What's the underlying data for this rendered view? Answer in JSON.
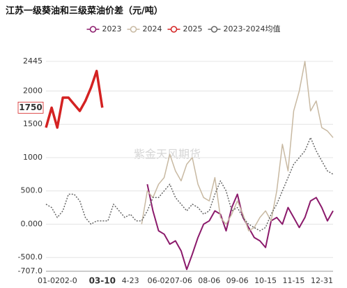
{
  "chart_data": {
    "type": "line",
    "title": "江苏一级葵油和三级菜油价差（元/吨）",
    "watermark": "紫金天风期货",
    "categories": [
      "01-02",
      null,
      null,
      null,
      "02-0",
      null,
      null,
      null,
      null,
      null,
      "03-10",
      null,
      null,
      null,
      null,
      "4-23",
      null,
      null,
      null,
      null,
      "06-02",
      null,
      null,
      null,
      "07-06",
      null,
      null,
      null,
      null,
      "08-06",
      null,
      null,
      null,
      null,
      "09-06",
      null,
      null,
      null,
      null,
      "10-15",
      null,
      null,
      null,
      null,
      "11-15",
      null,
      null,
      null,
      null,
      null,
      null,
      "12-31"
    ],
    "series": [
      {
        "name": "2023",
        "color": "#8b1a6b",
        "width": 2,
        "dash": false,
        "values": [
          null,
          null,
          null,
          null,
          null,
          null,
          null,
          null,
          null,
          null,
          null,
          null,
          null,
          null,
          null,
          null,
          null,
          null,
          600,
          200,
          -100,
          -150,
          -300,
          -250,
          -400,
          -680,
          -450,
          -200,
          0,
          50,
          200,
          150,
          -100,
          250,
          450,
          100,
          -50,
          -200,
          -250,
          -350,
          50,
          100,
          0,
          250,
          100,
          -50,
          100,
          350,
          400,
          250,
          50,
          200
        ]
      },
      {
        "name": "2024",
        "color": "#c8b9a2",
        "width": 1.5,
        "dash": false,
        "values": [
          null,
          null,
          null,
          null,
          null,
          null,
          null,
          null,
          null,
          null,
          null,
          null,
          null,
          null,
          null,
          null,
          null,
          0,
          500,
          400,
          600,
          700,
          1050,
          800,
          650,
          900,
          1000,
          600,
          400,
          350,
          700,
          100,
          0,
          150,
          350,
          150,
          -100,
          -50,
          100,
          200,
          50,
          500,
          1200,
          800,
          1700,
          2000,
          2445,
          1700,
          1850,
          1450,
          1400,
          1300
        ]
      },
      {
        "name": "2025",
        "color": "#d42222",
        "width": 3.5,
        "dash": false,
        "values": [
          1450,
          1750,
          1450,
          1900,
          1900,
          1800,
          1700,
          1850,
          2050,
          2300,
          1750,
          null,
          null,
          null,
          null,
          null,
          null,
          null,
          null,
          null,
          null,
          null,
          null,
          null,
          null,
          null,
          null,
          null,
          null,
          null,
          null,
          null,
          null,
          null,
          null,
          null,
          null,
          null,
          null,
          null,
          null,
          null,
          null,
          null,
          null,
          null,
          null,
          null,
          null,
          null,
          null,
          null
        ]
      },
      {
        "name": "2023-2024均值",
        "color": "#666666",
        "width": 1.5,
        "dash": true,
        "values": [
          300,
          250,
          100,
          200,
          450,
          450,
          350,
          100,
          0,
          50,
          50,
          50,
          300,
          200,
          100,
          150,
          50,
          50,
          200,
          400,
          400,
          500,
          600,
          400,
          300,
          200,
          300,
          250,
          150,
          200,
          450,
          650,
          500,
          200,
          250,
          100,
          0,
          -50,
          -100,
          -50,
          150,
          300,
          500,
          700,
          900,
          1000,
          1100,
          1300,
          1100,
          950,
          800,
          750
        ]
      }
    ],
    "ylim": [
      -707,
      2445
    ],
    "yticks": [
      2445,
      2000,
      1500,
      1000,
      {
        "value": 500,
        "label": "500.0"
      },
      {
        "value": 0,
        "label": "0.000"
      },
      {
        "value": -500,
        "label": "-500.0"
      },
      {
        "value": -707,
        "label": "-707.0"
      }
    ],
    "grid": true,
    "crosshair": {
      "x": "03-10",
      "y": 1750,
      "color": "#d42222"
    }
  }
}
